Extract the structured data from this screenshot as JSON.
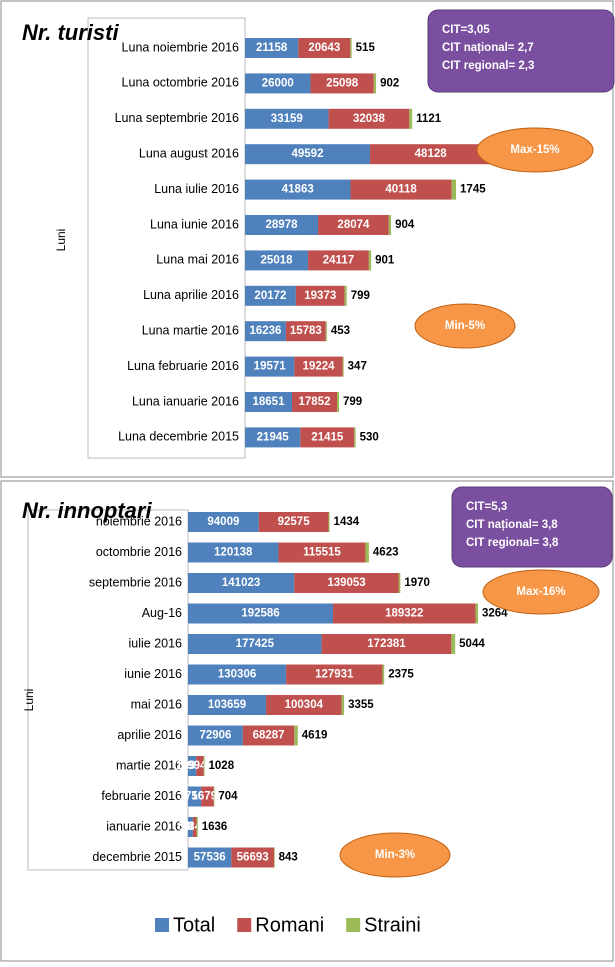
{
  "chart_data": [
    {
      "type": "bar",
      "title": "Nr. turisti",
      "y_label": "Luni",
      "categories": [
        "Luna noiembrie 2016",
        "Luna octombrie 2016",
        "Luna septembrie 2016",
        "Luna august 2016",
        "Luna iulie 2016",
        "Luna iunie 2016",
        "Luna mai 2016",
        "Luna aprilie 2016",
        "Luna martie 2016",
        "Luna februarie 2016",
        "Luna ianuarie 2016",
        "Luna decembrie 2015"
      ],
      "series": [
        {
          "color": "#4f81bd",
          "values": [
            21158,
            26000,
            33159,
            49592,
            41863,
            28978,
            25018,
            20172,
            16236,
            19571,
            18651,
            21945
          ]
        },
        {
          "color": "#c0504d",
          "values": [
            20643,
            25098,
            32038,
            48128,
            40118,
            28074,
            24117,
            19373,
            15783,
            19224,
            17852,
            21415
          ]
        },
        {
          "color": "#9bbb59",
          "values": [
            515,
            902,
            1121,
            1464,
            1745,
            904,
            901,
            799,
            453,
            347,
            799,
            530
          ]
        }
      ],
      "note_lines": [
        "CIT=3,05",
        "CIT național= 2,7",
        "CIT regional= 2,3"
      ],
      "annotations": [
        "Max-15%",
        "Min-5%"
      ]
    },
    {
      "type": "bar",
      "title": "Nr. innoptari",
      "y_label": "Luni",
      "categories": [
        "noiembrie 2016",
        "octombrie 2016",
        "septembrie 2016",
        "Aug-16",
        "iulie 2016",
        "iunie 2016",
        "mai 2016",
        "aprilie 2016",
        "martie 2016",
        "februarie 2016",
        "ianuarie 2016",
        "decembrie 2015"
      ],
      "series": [
        {
          "name": "Total",
          "color": "#4f81bd",
          "values": [
            94009,
            120138,
            141023,
            192586,
            177425,
            130306,
            103659,
            72906,
            10970,
            17500,
            6484,
            57536
          ]
        },
        {
          "name": "Romani",
          "color": "#c0504d",
          "values": [
            92575,
            115515,
            139053,
            189322,
            172381,
            127931,
            100304,
            68287,
            9942,
            16796,
            4848,
            56693
          ]
        },
        {
          "name": "Straini",
          "color": "#9bbb59",
          "values": [
            1434,
            4623,
            1970,
            3264,
            5044,
            2375,
            3355,
            4619,
            1028,
            704,
            1636,
            843
          ]
        }
      ],
      "note_lines": [
        "CIT=5,3",
        "CIT național= 3,8",
        "CIT regional= 3,8"
      ],
      "annotations": [
        "Max-16%",
        "Min-3%"
      ]
    }
  ]
}
